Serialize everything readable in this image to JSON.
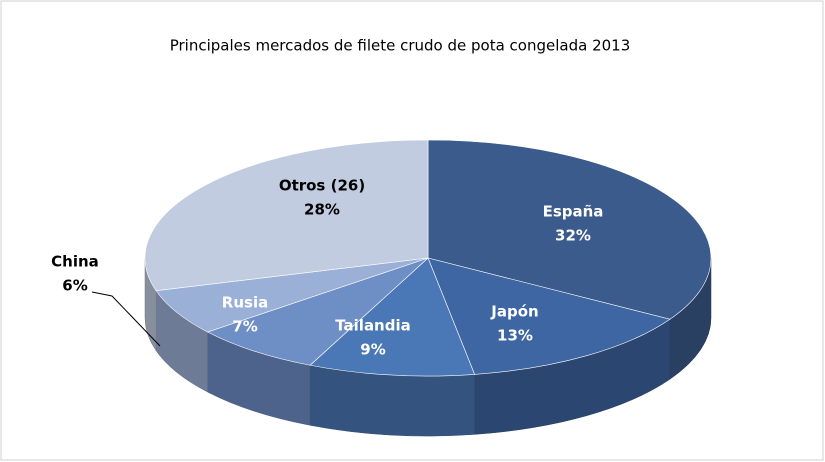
{
  "chart_data": {
    "type": "pie",
    "title": "Principales mercados de  filete crudo de pota congelada 2013",
    "categories": [
      "España",
      "Japón",
      "Tailandia",
      "Rusia",
      "China",
      "Otros (26)"
    ],
    "values": [
      32,
      13,
      9,
      7,
      6,
      28
    ],
    "value_labels": [
      "32%",
      "13%",
      "9%",
      "7%",
      "6%",
      "28%"
    ],
    "colors": [
      "#3b5b8c",
      "#3e66a2",
      "#4a78b6",
      "#6e8ec6",
      "#9bb0d6",
      "#c1cce0"
    ]
  }
}
